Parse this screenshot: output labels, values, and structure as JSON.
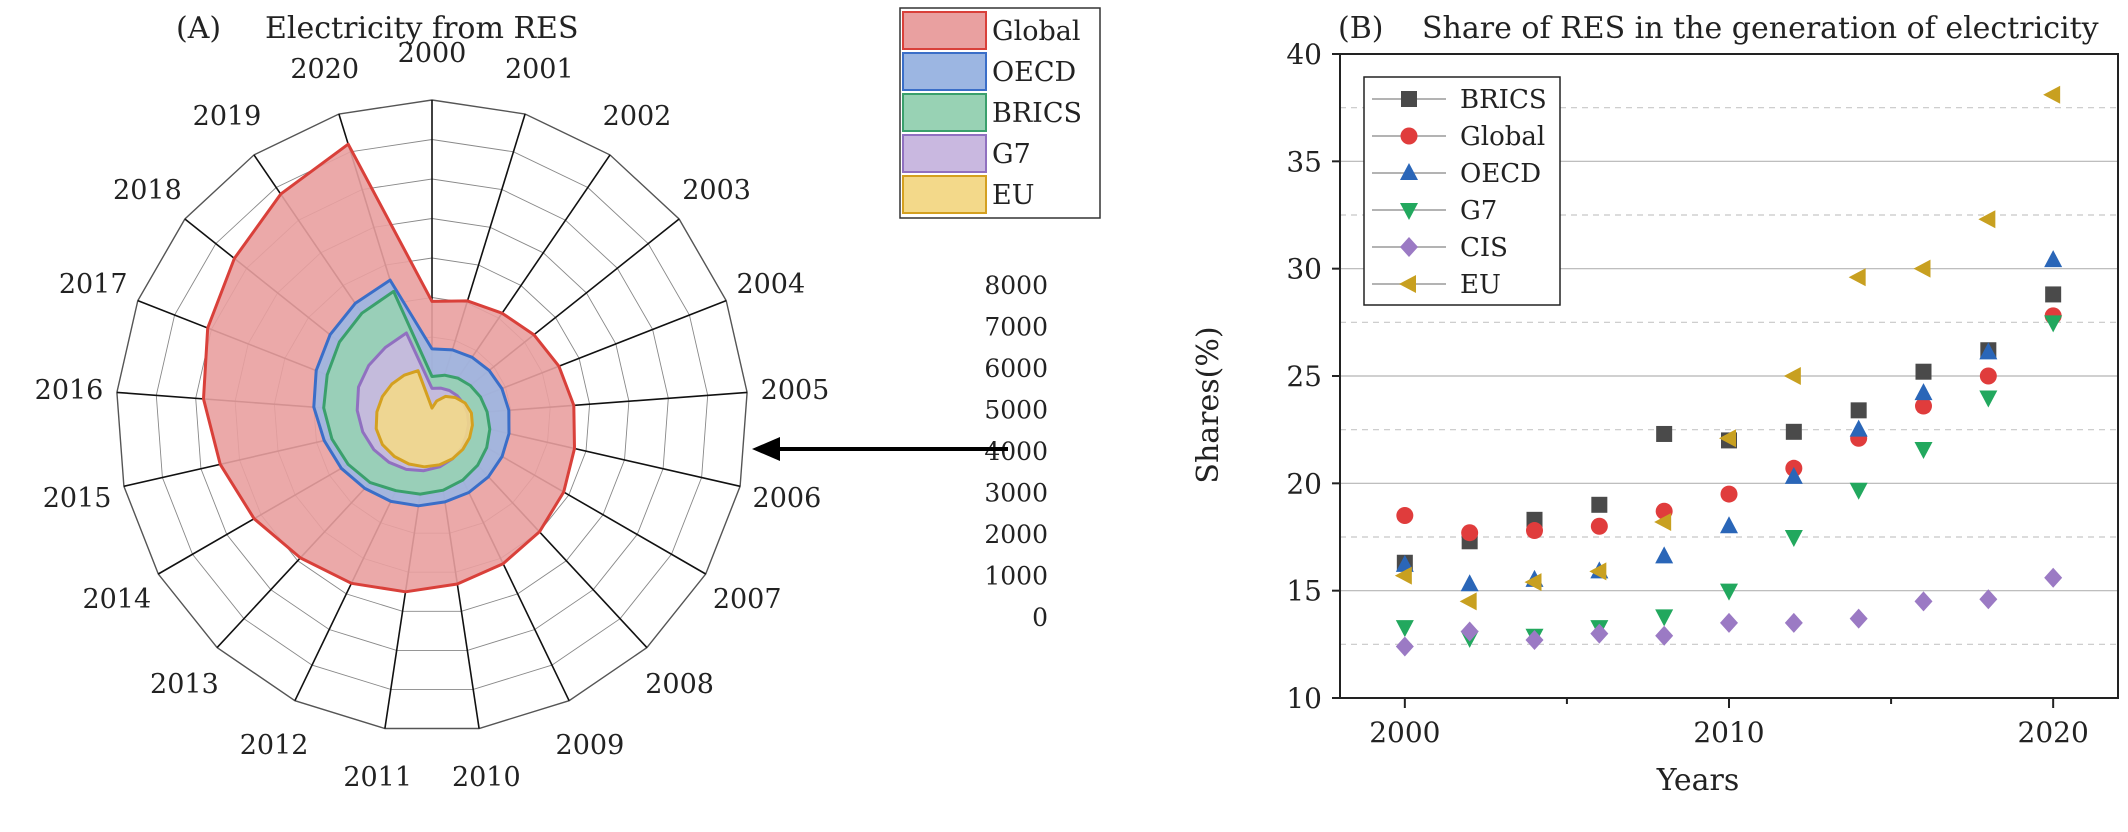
{
  "chart_data": [
    {
      "type": "radar",
      "panel": "(A)",
      "title": "Electricity from RES",
      "categories": [
        "2000",
        "2001",
        "2002",
        "2003",
        "2004",
        "2005",
        "2006",
        "2007",
        "2008",
        "2009",
        "2010",
        "2011",
        "2012",
        "2013",
        "2014",
        "2015",
        "2016",
        "2017",
        "2018",
        "2019",
        "2020"
      ],
      "radial_ticks": [
        0,
        1000,
        2000,
        3000,
        4000,
        5000,
        6000,
        7000,
        8000
      ],
      "rlim": [
        0,
        8000
      ],
      "legend_position": "top-right",
      "series": [
        {
          "name": "Global",
          "color": "#d9403a",
          "fill": "#e9a0a0",
          "values": [
            2900,
            3050,
            3150,
            3300,
            3450,
            3600,
            3700,
            3850,
            4000,
            4150,
            4300,
            4500,
            4700,
            4900,
            5200,
            5500,
            5800,
            6100,
            6400,
            6800,
            7200
          ]
        },
        {
          "name": "OECD",
          "color": "#3a6ec8",
          "fill": "#9cb6e2",
          "values": [
            1700,
            1750,
            1800,
            1850,
            1900,
            1950,
            2000,
            2050,
            2100,
            2150,
            2200,
            2300,
            2400,
            2500,
            2650,
            2800,
            3000,
            3150,
            3300,
            3450,
            3600
          ]
        },
        {
          "name": "BRICS",
          "color": "#3aa06c",
          "fill": "#98d2b4",
          "values": [
            1000,
            1080,
            1160,
            1240,
            1320,
            1400,
            1500,
            1600,
            1700,
            1800,
            1900,
            2000,
            2100,
            2300,
            2450,
            2600,
            2750,
            2850,
            3000,
            3150,
            3300
          ]
        },
        {
          "name": "G7",
          "color": "#9070c0",
          "fill": "#c9b8e0",
          "values": [
            700,
            740,
            780,
            820,
            860,
            900,
            950,
            1000,
            1100,
            1200,
            1300,
            1400,
            1500,
            1600,
            1700,
            1800,
            1900,
            2000,
            2050,
            2100,
            2200
          ]
        },
        {
          "name": "EU",
          "color": "#d4a020",
          "fill": "#f3d98a",
          "values": [
            200,
            400,
            600,
            750,
            900,
            1000,
            1050,
            1100,
            1150,
            1200,
            1250,
            1300,
            1350,
            1400,
            1450,
            1450,
            1400,
            1350,
            1300,
            1250,
            1200
          ]
        }
      ]
    },
    {
      "type": "scatter",
      "panel": "(B)",
      "title": "Share of RES in the generation of electricity",
      "xlabel": "Years",
      "ylabel": "Shares(%)",
      "xlim": [
        1998,
        2022
      ],
      "ylim": [
        10,
        40
      ],
      "x_ticks": [
        2000,
        2010,
        2020
      ],
      "y_ticks": [
        10,
        15,
        20,
        25,
        30,
        35,
        40
      ],
      "legend_position": "top-left",
      "grid": true,
      "x": [
        2000,
        2002,
        2004,
        2006,
        2008,
        2010,
        2012,
        2014,
        2016,
        2018,
        2020
      ],
      "series": [
        {
          "name": "BRICS",
          "marker": "square",
          "color": "#4a4a4a",
          "values": [
            16.3,
            17.3,
            18.3,
            19.0,
            22.3,
            22.0,
            22.4,
            23.4,
            25.2,
            26.2,
            28.8
          ]
        },
        {
          "name": "Global",
          "marker": "circle",
          "color": "#e03c3c",
          "values": [
            18.5,
            17.7,
            17.8,
            18.0,
            18.7,
            19.5,
            20.7,
            22.1,
            23.6,
            25.0,
            27.8
          ]
        },
        {
          "name": "OECD",
          "marker": "triangle-up",
          "color": "#2a66b8",
          "values": [
            16.2,
            15.3,
            15.5,
            15.9,
            16.6,
            18.0,
            20.3,
            22.5,
            24.2,
            26.1,
            30.4
          ]
        },
        {
          "name": "G7",
          "marker": "triangle-down",
          "color": "#22a85e",
          "values": [
            13.3,
            12.8,
            12.9,
            13.3,
            13.8,
            15.0,
            17.5,
            19.7,
            21.6,
            24.0,
            27.5
          ]
        },
        {
          "name": "CIS",
          "marker": "diamond",
          "color": "#9b7ac4",
          "values": [
            12.4,
            13.1,
            12.7,
            13.0,
            12.9,
            13.5,
            13.5,
            13.7,
            14.5,
            14.6,
            15.6
          ]
        },
        {
          "name": "EU",
          "marker": "triangle-left",
          "color": "#c8a020",
          "values": [
            15.7,
            14.5,
            15.4,
            15.9,
            18.2,
            22.1,
            25.0,
            29.6,
            30.0,
            32.3,
            38.1
          ]
        }
      ]
    }
  ]
}
